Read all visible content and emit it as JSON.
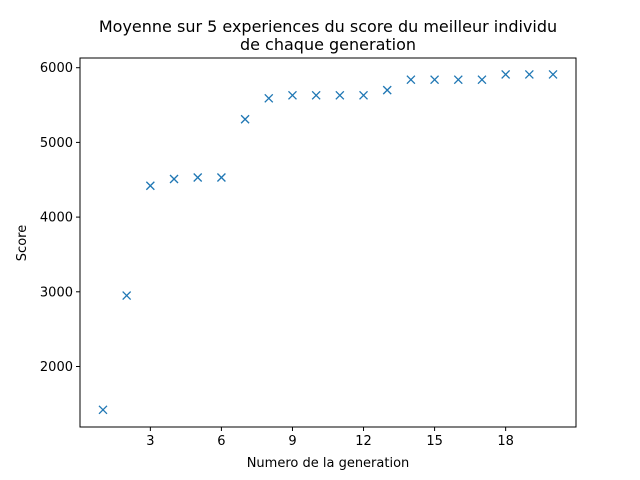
{
  "chart_data": {
    "type": "scatter",
    "title_line1": "Moyenne sur 5 experiences du score du meilleur individu",
    "title_line2": "de chaque generation",
    "xlabel": "Numero de la generation",
    "ylabel": "Score",
    "marker": "x",
    "marker_color": "#1f77b4",
    "grid": false,
    "legend": "none",
    "xlim": [
      0.03,
      20.97
    ],
    "ylim": [
      1190,
      6130
    ],
    "xticks": [
      3,
      6,
      9,
      12,
      15,
      18
    ],
    "yticks": [
      2000,
      3000,
      4000,
      5000,
      6000
    ],
    "series": [
      {
        "x": [
          1,
          2,
          3,
          4,
          5,
          6,
          7,
          8,
          9,
          10,
          11,
          12,
          13,
          14,
          15,
          16,
          17,
          18,
          19,
          20
        ],
        "y": [
          1420,
          2950,
          4420,
          4510,
          4530,
          4530,
          5310,
          5590,
          5630,
          5630,
          5630,
          5630,
          5700,
          5840,
          5840,
          5840,
          5840,
          5910,
          5910,
          5910
        ]
      }
    ]
  }
}
